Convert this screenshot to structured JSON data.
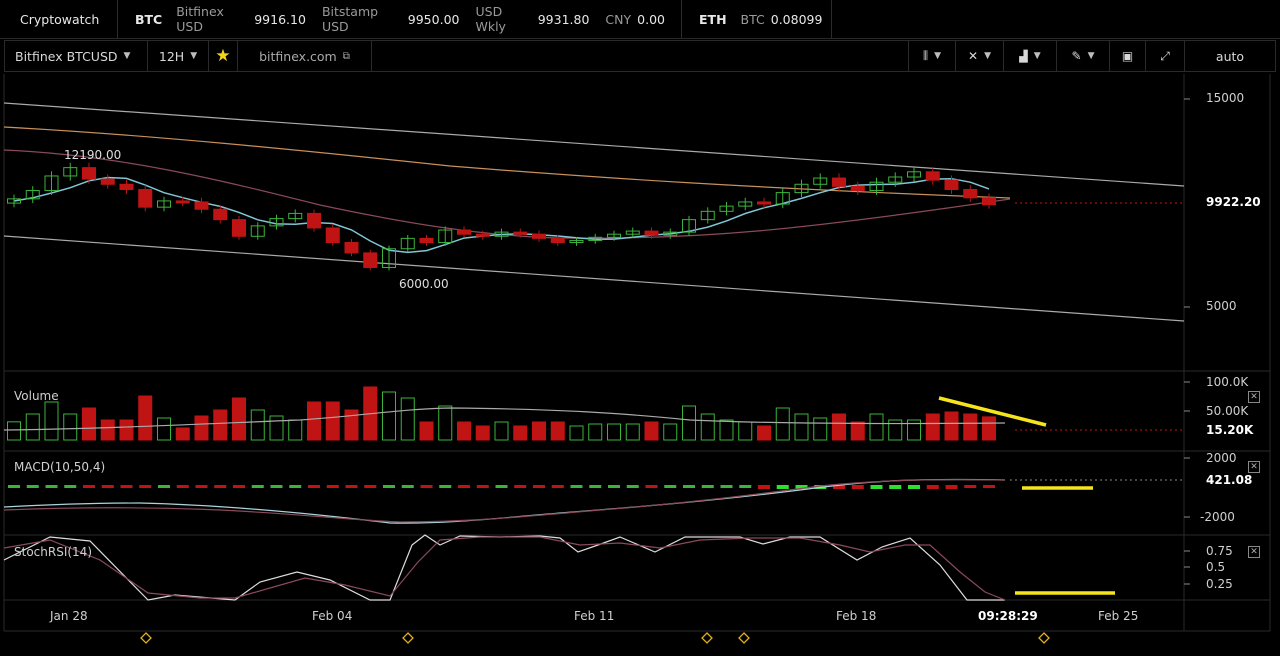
{
  "topbar": {
    "app_name": "Cryptowatch",
    "btc": {
      "label": "BTC",
      "tickers": [
        {
          "exchange": "Bitfinex USD",
          "price": "9916.10"
        },
        {
          "exchange": "Bitstamp USD",
          "price": "9950.00"
        },
        {
          "exchange": "USD Wkly",
          "price": "9931.80"
        },
        {
          "exchange": "CNY",
          "price": "0.00"
        }
      ]
    },
    "eth": {
      "label": "ETH",
      "tickers": [
        {
          "exchange": "BTC",
          "price": "0.08099"
        }
      ]
    }
  },
  "toolbar": {
    "market": "Bitfinex BTCUSD",
    "interval": "12H",
    "star_icon": "star-icon",
    "link_text": "bitfinex.com",
    "auto_label": "auto",
    "icons": [
      "candles-icon",
      "crosshair-icon",
      "indicators-icon",
      "draw-pen-icon",
      "chart-image-icon",
      "fullscreen-icon"
    ]
  },
  "price_axis": {
    "labels": [
      "15000",
      "5000"
    ],
    "current": "9922.20"
  },
  "annotations": {
    "high": "12190.00",
    "low": "6000.00"
  },
  "volume_pane": {
    "title": "Volume",
    "axis": [
      "100.0K",
      "50.00K"
    ],
    "current": "15.20K"
  },
  "macd_pane": {
    "title": "MACD(10,50,4)",
    "axis": [
      "2000",
      "-2000"
    ],
    "current": "421.08"
  },
  "stoch_pane": {
    "title": "StochRSI(14)",
    "axis": [
      "0.75",
      "0.5",
      "0.25"
    ]
  },
  "time_axis": {
    "labels": [
      "Jan 28",
      "Feb 04",
      "Feb 11",
      "Feb 18",
      "Feb 25"
    ],
    "cursor_time": "09:28:29"
  },
  "colors": {
    "up": "#3cb43c",
    "down": "#c01414",
    "highlight": "#f5e51a",
    "ma": "#7fc7d4"
  },
  "chart_data": {
    "type": "candlestick",
    "closes": [
      10200,
      10600,
      11300,
      11700,
      11150,
      10900,
      10650,
      9800,
      10100,
      10050,
      9700,
      9200,
      8400,
      8900,
      9250,
      9500,
      8800,
      8100,
      7600,
      6900,
      7800,
      8300,
      8100,
      8700,
      8500,
      8400,
      8600,
      8500,
      8300,
      8100,
      8200,
      8350,
      8500,
      8650,
      8450,
      8600,
      9200,
      9600,
      9850,
      10050,
      9950,
      10500,
      10900,
      11200,
      10800,
      10600,
      11000,
      11250,
      11500,
      11100,
      10650,
      10250,
      9922
    ]
  }
}
